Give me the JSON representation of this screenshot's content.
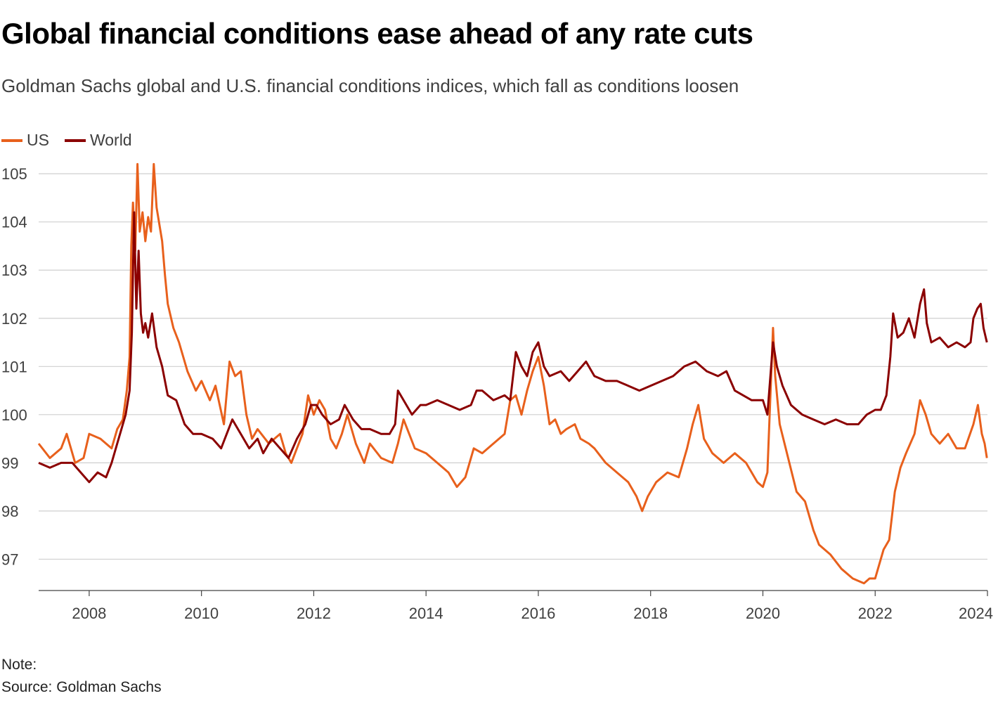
{
  "title": "Global financial conditions ease ahead of any rate cuts",
  "subtitle": "Goldman Sachs global and U.S. financial conditions indices, which fall as conditions loosen",
  "note": "Note:",
  "source": "Source: Goldman Sachs",
  "chart_data": {
    "type": "line",
    "title": "Global financial conditions ease ahead of any rate cuts",
    "subtitle": "Goldman Sachs global and U.S. financial conditions indices, which fall as conditions loosen",
    "xlim": [
      2007.1,
      2024.0
    ],
    "ylim": [
      96.35,
      105.25
    ],
    "x_ticks": [
      2008,
      2010,
      2012,
      2014,
      2016,
      2018,
      2020,
      2022,
      2024
    ],
    "y_ticks": [
      97,
      98,
      99,
      100,
      101,
      102,
      103,
      104,
      105
    ],
    "grid": "horizontal",
    "legend_position": "top-left",
    "series": [
      {
        "name": "US",
        "color": "#e8601c",
        "points": [
          [
            2007.1,
            99.4
          ],
          [
            2007.3,
            99.1
          ],
          [
            2007.5,
            99.3
          ],
          [
            2007.6,
            99.6
          ],
          [
            2007.75,
            99.0
          ],
          [
            2007.9,
            99.1
          ],
          [
            2008.0,
            99.6
          ],
          [
            2008.2,
            99.5
          ],
          [
            2008.4,
            99.3
          ],
          [
            2008.5,
            99.7
          ],
          [
            2008.6,
            99.9
          ],
          [
            2008.67,
            100.5
          ],
          [
            2008.72,
            101.2
          ],
          [
            2008.75,
            103.5
          ],
          [
            2008.78,
            104.4
          ],
          [
            2008.82,
            103.4
          ],
          [
            2008.86,
            105.2
          ],
          [
            2008.9,
            103.8
          ],
          [
            2008.95,
            104.2
          ],
          [
            2009.0,
            103.6
          ],
          [
            2009.05,
            104.1
          ],
          [
            2009.1,
            103.8
          ],
          [
            2009.15,
            105.2
          ],
          [
            2009.2,
            104.3
          ],
          [
            2009.3,
            103.6
          ],
          [
            2009.35,
            102.9
          ],
          [
            2009.4,
            102.3
          ],
          [
            2009.5,
            101.8
          ],
          [
            2009.6,
            101.5
          ],
          [
            2009.75,
            100.9
          ],
          [
            2009.9,
            100.5
          ],
          [
            2010.0,
            100.7
          ],
          [
            2010.15,
            100.3
          ],
          [
            2010.25,
            100.6
          ],
          [
            2010.4,
            99.8
          ],
          [
            2010.5,
            101.1
          ],
          [
            2010.6,
            100.8
          ],
          [
            2010.7,
            100.9
          ],
          [
            2010.8,
            100.0
          ],
          [
            2010.9,
            99.5
          ],
          [
            2011.0,
            99.7
          ],
          [
            2011.2,
            99.4
          ],
          [
            2011.4,
            99.6
          ],
          [
            2011.5,
            99.2
          ],
          [
            2011.6,
            99.0
          ],
          [
            2011.8,
            99.6
          ],
          [
            2011.9,
            100.4
          ],
          [
            2012.0,
            100.0
          ],
          [
            2012.1,
            100.3
          ],
          [
            2012.2,
            100.1
          ],
          [
            2012.3,
            99.5
          ],
          [
            2012.4,
            99.3
          ],
          [
            2012.5,
            99.6
          ],
          [
            2012.6,
            100.0
          ],
          [
            2012.75,
            99.4
          ],
          [
            2012.9,
            99.0
          ],
          [
            2013.0,
            99.4
          ],
          [
            2013.2,
            99.1
          ],
          [
            2013.4,
            99.0
          ],
          [
            2013.5,
            99.4
          ],
          [
            2013.6,
            99.9
          ],
          [
            2013.8,
            99.3
          ],
          [
            2014.0,
            99.2
          ],
          [
            2014.2,
            99.0
          ],
          [
            2014.4,
            98.8
          ],
          [
            2014.55,
            98.5
          ],
          [
            2014.7,
            98.7
          ],
          [
            2014.85,
            99.3
          ],
          [
            2015.0,
            99.2
          ],
          [
            2015.2,
            99.4
          ],
          [
            2015.4,
            99.6
          ],
          [
            2015.5,
            100.3
          ],
          [
            2015.6,
            100.4
          ],
          [
            2015.7,
            100.0
          ],
          [
            2015.8,
            100.5
          ],
          [
            2015.9,
            100.9
          ],
          [
            2016.0,
            101.2
          ],
          [
            2016.1,
            100.6
          ],
          [
            2016.2,
            99.8
          ],
          [
            2016.3,
            99.9
          ],
          [
            2016.4,
            99.6
          ],
          [
            2016.5,
            99.7
          ],
          [
            2016.65,
            99.8
          ],
          [
            2016.75,
            99.5
          ],
          [
            2016.9,
            99.4
          ],
          [
            2017.0,
            99.3
          ],
          [
            2017.2,
            99.0
          ],
          [
            2017.4,
            98.8
          ],
          [
            2017.6,
            98.6
          ],
          [
            2017.75,
            98.3
          ],
          [
            2017.85,
            98.0
          ],
          [
            2017.95,
            98.3
          ],
          [
            2018.1,
            98.6
          ],
          [
            2018.3,
            98.8
          ],
          [
            2018.5,
            98.7
          ],
          [
            2018.65,
            99.3
          ],
          [
            2018.75,
            99.8
          ],
          [
            2018.85,
            100.2
          ],
          [
            2018.95,
            99.5
          ],
          [
            2019.1,
            99.2
          ],
          [
            2019.3,
            99.0
          ],
          [
            2019.5,
            99.2
          ],
          [
            2019.7,
            99.0
          ],
          [
            2019.9,
            98.6
          ],
          [
            2020.0,
            98.5
          ],
          [
            2020.08,
            98.8
          ],
          [
            2020.18,
            101.8
          ],
          [
            2020.22,
            100.8
          ],
          [
            2020.3,
            99.8
          ],
          [
            2020.45,
            99.1
          ],
          [
            2020.6,
            98.4
          ],
          [
            2020.75,
            98.2
          ],
          [
            2020.9,
            97.6
          ],
          [
            2021.0,
            97.3
          ],
          [
            2021.2,
            97.1
          ],
          [
            2021.4,
            96.8
          ],
          [
            2021.6,
            96.6
          ],
          [
            2021.8,
            96.5
          ],
          [
            2021.9,
            96.6
          ],
          [
            2022.0,
            96.6
          ],
          [
            2022.15,
            97.2
          ],
          [
            2022.25,
            97.4
          ],
          [
            2022.35,
            98.4
          ],
          [
            2022.45,
            98.9
          ],
          [
            2022.55,
            99.2
          ],
          [
            2022.7,
            99.6
          ],
          [
            2022.8,
            100.3
          ],
          [
            2022.9,
            100.0
          ],
          [
            2023.0,
            99.6
          ],
          [
            2023.15,
            99.4
          ],
          [
            2023.3,
            99.6
          ],
          [
            2023.45,
            99.3
          ],
          [
            2023.6,
            99.3
          ],
          [
            2023.75,
            99.8
          ],
          [
            2023.83,
            100.2
          ],
          [
            2023.9,
            99.6
          ],
          [
            2023.95,
            99.4
          ],
          [
            2023.99,
            99.1
          ]
        ]
      },
      {
        "name": "World",
        "color": "#8b0000",
        "points": [
          [
            2007.1,
            99.0
          ],
          [
            2007.3,
            98.9
          ],
          [
            2007.5,
            99.0
          ],
          [
            2007.7,
            99.0
          ],
          [
            2007.85,
            98.8
          ],
          [
            2008.0,
            98.6
          ],
          [
            2008.15,
            98.8
          ],
          [
            2008.3,
            98.7
          ],
          [
            2008.4,
            99.0
          ],
          [
            2008.55,
            99.6
          ],
          [
            2008.65,
            100.0
          ],
          [
            2008.72,
            100.5
          ],
          [
            2008.76,
            101.7
          ],
          [
            2008.8,
            104.2
          ],
          [
            2008.84,
            102.2
          ],
          [
            2008.88,
            103.4
          ],
          [
            2008.92,
            102.1
          ],
          [
            2008.96,
            101.7
          ],
          [
            2009.0,
            101.9
          ],
          [
            2009.05,
            101.6
          ],
          [
            2009.12,
            102.1
          ],
          [
            2009.2,
            101.4
          ],
          [
            2009.3,
            101.0
          ],
          [
            2009.4,
            100.4
          ],
          [
            2009.55,
            100.3
          ],
          [
            2009.7,
            99.8
          ],
          [
            2009.85,
            99.6
          ],
          [
            2010.0,
            99.6
          ],
          [
            2010.2,
            99.5
          ],
          [
            2010.35,
            99.3
          ],
          [
            2010.45,
            99.6
          ],
          [
            2010.55,
            99.9
          ],
          [
            2010.7,
            99.6
          ],
          [
            2010.85,
            99.3
          ],
          [
            2011.0,
            99.5
          ],
          [
            2011.1,
            99.2
          ],
          [
            2011.25,
            99.5
          ],
          [
            2011.4,
            99.3
          ],
          [
            2011.55,
            99.1
          ],
          [
            2011.7,
            99.5
          ],
          [
            2011.85,
            99.8
          ],
          [
            2011.95,
            100.2
          ],
          [
            2012.05,
            100.2
          ],
          [
            2012.15,
            100.0
          ],
          [
            2012.3,
            99.8
          ],
          [
            2012.45,
            99.9
          ],
          [
            2012.55,
            100.2
          ],
          [
            2012.7,
            99.9
          ],
          [
            2012.85,
            99.7
          ],
          [
            2013.0,
            99.7
          ],
          [
            2013.2,
            99.6
          ],
          [
            2013.35,
            99.6
          ],
          [
            2013.45,
            99.8
          ],
          [
            2013.5,
            100.5
          ],
          [
            2013.6,
            100.3
          ],
          [
            2013.75,
            100.0
          ],
          [
            2013.9,
            100.2
          ],
          [
            2014.0,
            100.2
          ],
          [
            2014.2,
            100.3
          ],
          [
            2014.4,
            100.2
          ],
          [
            2014.6,
            100.1
          ],
          [
            2014.8,
            100.2
          ],
          [
            2014.9,
            100.5
          ],
          [
            2015.0,
            100.5
          ],
          [
            2015.2,
            100.3
          ],
          [
            2015.4,
            100.4
          ],
          [
            2015.5,
            100.3
          ],
          [
            2015.55,
            100.8
          ],
          [
            2015.6,
            101.3
          ],
          [
            2015.7,
            101.0
          ],
          [
            2015.8,
            100.8
          ],
          [
            2015.9,
            101.3
          ],
          [
            2016.0,
            101.5
          ],
          [
            2016.1,
            101.0
          ],
          [
            2016.2,
            100.8
          ],
          [
            2016.4,
            100.9
          ],
          [
            2016.55,
            100.7
          ],
          [
            2016.7,
            100.9
          ],
          [
            2016.85,
            101.1
          ],
          [
            2017.0,
            100.8
          ],
          [
            2017.2,
            100.7
          ],
          [
            2017.4,
            100.7
          ],
          [
            2017.6,
            100.6
          ],
          [
            2017.8,
            100.5
          ],
          [
            2018.0,
            100.6
          ],
          [
            2018.2,
            100.7
          ],
          [
            2018.4,
            100.8
          ],
          [
            2018.6,
            101.0
          ],
          [
            2018.8,
            101.1
          ],
          [
            2019.0,
            100.9
          ],
          [
            2019.2,
            100.8
          ],
          [
            2019.35,
            100.9
          ],
          [
            2019.5,
            100.5
          ],
          [
            2019.65,
            100.4
          ],
          [
            2019.8,
            100.3
          ],
          [
            2020.0,
            100.3
          ],
          [
            2020.08,
            100.0
          ],
          [
            2020.18,
            101.5
          ],
          [
            2020.25,
            101.0
          ],
          [
            2020.35,
            100.6
          ],
          [
            2020.5,
            100.2
          ],
          [
            2020.7,
            100.0
          ],
          [
            2020.9,
            99.9
          ],
          [
            2021.1,
            99.8
          ],
          [
            2021.3,
            99.9
          ],
          [
            2021.5,
            99.8
          ],
          [
            2021.7,
            99.8
          ],
          [
            2021.85,
            100.0
          ],
          [
            2022.0,
            100.1
          ],
          [
            2022.1,
            100.1
          ],
          [
            2022.2,
            100.4
          ],
          [
            2022.27,
            101.2
          ],
          [
            2022.32,
            102.1
          ],
          [
            2022.4,
            101.6
          ],
          [
            2022.5,
            101.7
          ],
          [
            2022.6,
            102.0
          ],
          [
            2022.7,
            101.6
          ],
          [
            2022.8,
            102.3
          ],
          [
            2022.87,
            102.6
          ],
          [
            2022.92,
            101.9
          ],
          [
            2023.0,
            101.5
          ],
          [
            2023.15,
            101.6
          ],
          [
            2023.3,
            101.4
          ],
          [
            2023.45,
            101.5
          ],
          [
            2023.6,
            101.4
          ],
          [
            2023.7,
            101.5
          ],
          [
            2023.75,
            102.0
          ],
          [
            2023.82,
            102.2
          ],
          [
            2023.88,
            102.3
          ],
          [
            2023.93,
            101.8
          ],
          [
            2023.97,
            101.6
          ],
          [
            2023.99,
            101.5
          ]
        ]
      }
    ]
  }
}
